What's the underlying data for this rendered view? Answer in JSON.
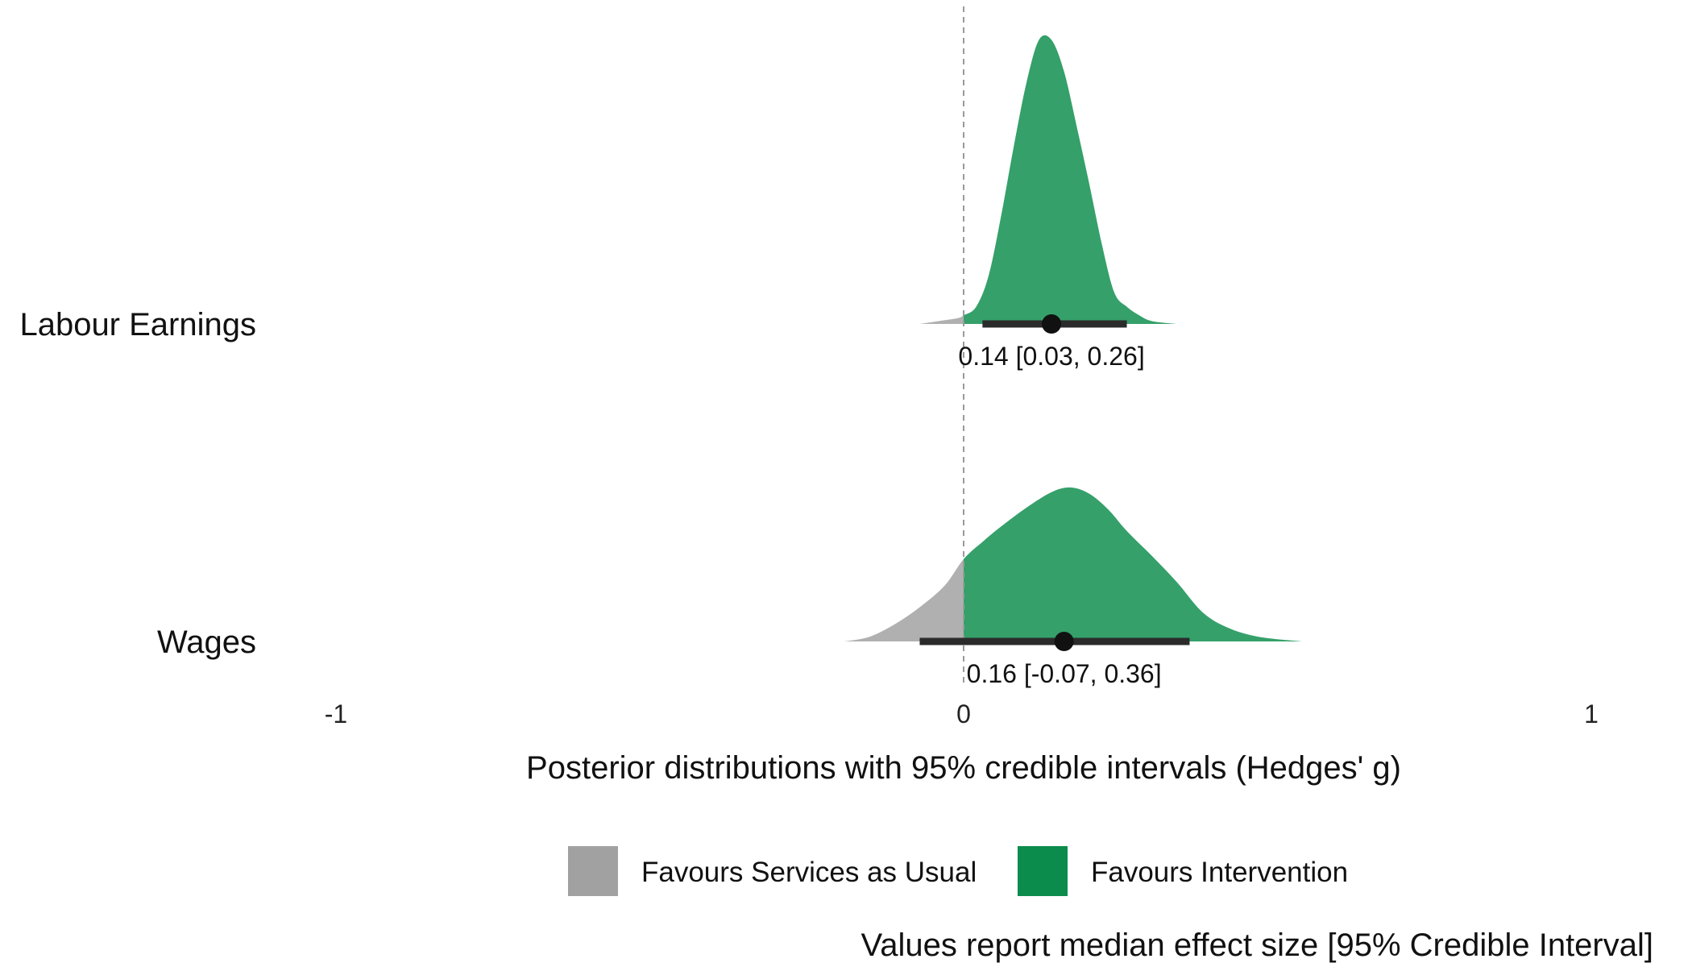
{
  "chart_data": {
    "type": "posterior-density",
    "xlabel": "Posterior distributions with 95% credible intervals (Hedges' g)",
    "xlim": [
      -1,
      1
    ],
    "x_ticks": [
      -1,
      0,
      1
    ],
    "x_tick_labels": [
      "-1",
      "0",
      "1"
    ],
    "reference_line_x": 0,
    "caption": "Values report median effect size [95% Credible Interval]",
    "legend": {
      "placement": "bottom",
      "items": [
        {
          "label": "Favours Services as Usual",
          "color": "#a1a1a1"
        },
        {
          "label": "Favours Intervention",
          "color": "#0b8c4c"
        }
      ]
    },
    "colors": {
      "negative_fill": "#b0b0b0",
      "positive_fill": "#35a06a",
      "interval": "#2b2b2b",
      "point": "#111111",
      "reference_line": "#9a9a9a"
    },
    "outcomes": [
      {
        "label": "Labour Earnings",
        "median": 0.14,
        "ci_low": 0.03,
        "ci_high": 0.26,
        "annotation": "0.14 [0.03, 0.26]",
        "density": [
          [
            -0.07,
            0.0
          ],
          [
            -0.04,
            0.01
          ],
          [
            -0.01,
            0.02
          ],
          [
            0.0,
            0.03
          ],
          [
            0.02,
            0.06
          ],
          [
            0.04,
            0.17
          ],
          [
            0.06,
            0.38
          ],
          [
            0.08,
            0.62
          ],
          [
            0.1,
            0.84
          ],
          [
            0.12,
            0.99
          ],
          [
            0.14,
            0.99
          ],
          [
            0.16,
            0.88
          ],
          [
            0.18,
            0.69
          ],
          [
            0.2,
            0.49
          ],
          [
            0.22,
            0.28
          ],
          [
            0.24,
            0.11
          ],
          [
            0.26,
            0.06
          ],
          [
            0.28,
            0.03
          ],
          [
            0.3,
            0.01
          ],
          [
            0.34,
            0.0
          ]
        ]
      },
      {
        "label": "Wages",
        "median": 0.16,
        "ci_low": -0.07,
        "ci_high": 0.36,
        "annotation": "0.16 [-0.07, 0.36]",
        "density": [
          [
            -0.19,
            0.0
          ],
          [
            -0.15,
            0.03
          ],
          [
            -0.11,
            0.11
          ],
          [
            -0.07,
            0.22
          ],
          [
            -0.03,
            0.36
          ],
          [
            0.0,
            0.53
          ],
          [
            0.03,
            0.64
          ],
          [
            0.06,
            0.74
          ],
          [
            0.1,
            0.86
          ],
          [
            0.14,
            0.96
          ],
          [
            0.17,
            0.99
          ],
          [
            0.2,
            0.95
          ],
          [
            0.23,
            0.85
          ],
          [
            0.26,
            0.71
          ],
          [
            0.3,
            0.55
          ],
          [
            0.34,
            0.38
          ],
          [
            0.38,
            0.19
          ],
          [
            0.42,
            0.09
          ],
          [
            0.47,
            0.03
          ],
          [
            0.54,
            0.0
          ]
        ]
      }
    ]
  }
}
